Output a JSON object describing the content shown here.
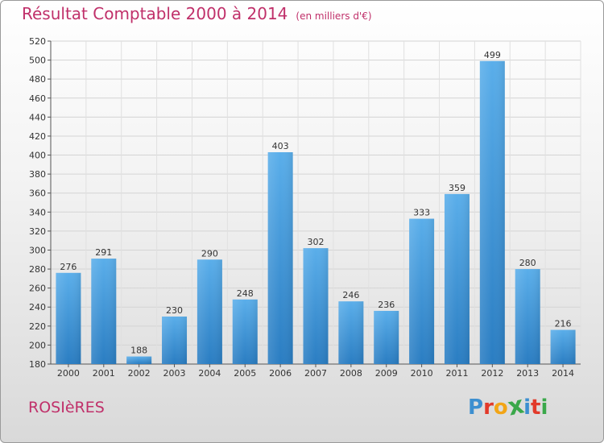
{
  "header": {
    "title": "Résultat Comptable 2000 à 2014",
    "subtitle": "(en milliers d'€)"
  },
  "footer": {
    "commune": "ROSIèRES",
    "logo": {
      "letters": [
        "P",
        "r",
        "o",
        "x",
        "i",
        "t",
        "i"
      ],
      "colors": [
        "#3d8fd0",
        "#e23a2a",
        "#f2a516",
        "#3aa84a",
        "#3d8fd0",
        "#e23a2a",
        "#3aa84a"
      ]
    }
  },
  "chart_data": {
    "type": "bar",
    "categories": [
      "2000",
      "2001",
      "2002",
      "2003",
      "2004",
      "2005",
      "2006",
      "2007",
      "2008",
      "2009",
      "2010",
      "2011",
      "2012",
      "2013",
      "2014"
    ],
    "values": [
      276,
      291,
      188,
      230,
      290,
      248,
      403,
      302,
      246,
      236,
      333,
      359,
      499,
      280,
      216
    ],
    "ylim": [
      180,
      520
    ],
    "yticks": [
      180,
      200,
      220,
      240,
      260,
      280,
      300,
      320,
      340,
      360,
      380,
      400,
      420,
      440,
      460,
      480,
      500,
      520
    ],
    "grid": true,
    "bar_color_top": "#5aaeea",
    "bar_color_bottom": "#2a7dc2"
  }
}
